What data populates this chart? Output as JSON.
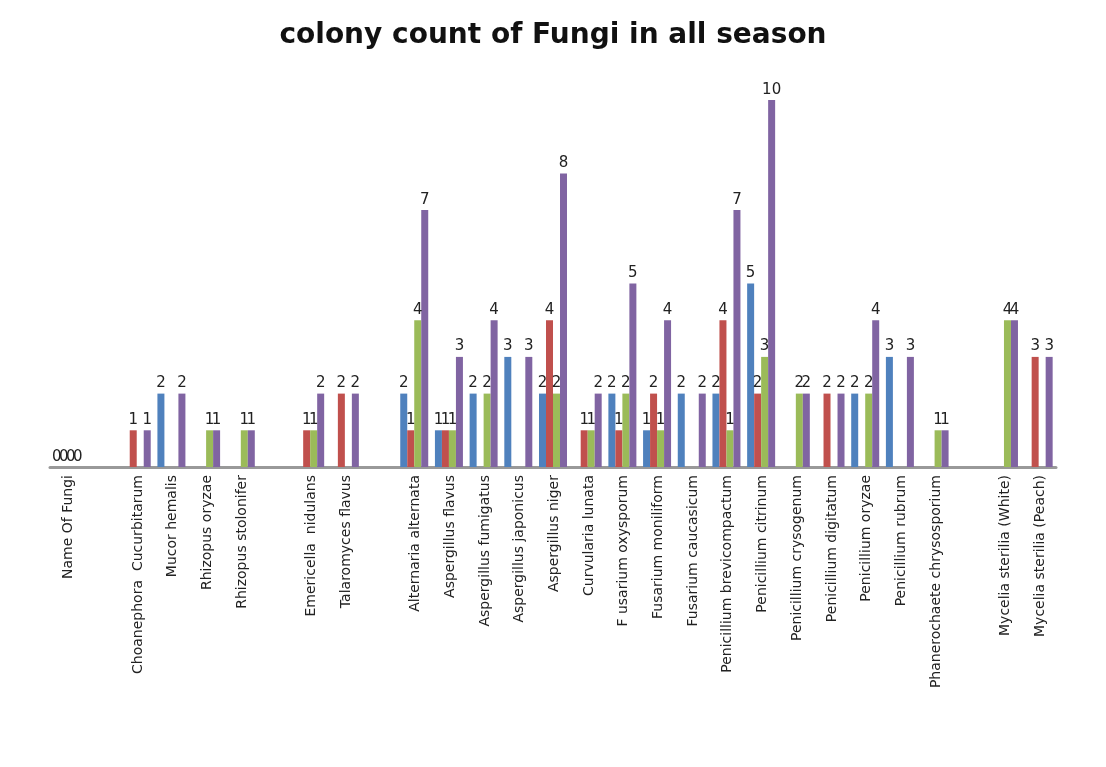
{
  "chart_data": {
    "type": "bar",
    "title": "colony count of Fungi in all season",
    "categories": [
      "Name Of Fungi",
      null,
      "Choanephora  Cucurbitarum",
      "Mucor hemalis",
      "Rhizopus oryzae",
      "Rhizopus stolonifer",
      null,
      "Emericella  nidulans",
      "Talaromyces flavus",
      null,
      "Alternaria alternata",
      "Aspergillus flavus",
      "Aspergillus fumigatus",
      "Aspergillus japonicus",
      "Aspergillus niger",
      "Curvularia lunata",
      "F usarium oxysporum",
      "Fusarium moniliform",
      "Fusarium caucasicum",
      "Penicillium brevicompactum",
      "Penicillium citrinum",
      "Penicillium crysogenum",
      "Penicillium digitatum",
      "Penicillium oryzae",
      "Penicillium rubrum",
      "Phanerochaete chrysosporium",
      null,
      "Mycelia sterilia (White)",
      "Mycelia sterilia (Peach)"
    ],
    "series": [
      {
        "color": "#4f81bd",
        "values": [
          0,
          null,
          null,
          2,
          null,
          null,
          null,
          null,
          null,
          null,
          2,
          1,
          2,
          3,
          2,
          null,
          2,
          1,
          2,
          2,
          5,
          null,
          null,
          2,
          3,
          null,
          null,
          null,
          null
        ]
      },
      {
        "color": "#c0504d",
        "values": [
          0,
          null,
          1,
          null,
          null,
          null,
          null,
          1,
          2,
          null,
          1,
          1,
          null,
          null,
          4,
          1,
          1,
          2,
          null,
          4,
          2,
          null,
          2,
          null,
          null,
          null,
          null,
          null,
          3
        ]
      },
      {
        "color": "#9bbb59",
        "values": [
          0,
          null,
          null,
          null,
          1,
          1,
          null,
          1,
          null,
          null,
          4,
          1,
          2,
          null,
          2,
          1,
          2,
          1,
          null,
          1,
          3,
          2,
          null,
          2,
          null,
          1,
          null,
          4,
          null
        ]
      },
      {
        "color": "#8064a2",
        "values": [
          0,
          null,
          1,
          2,
          1,
          1,
          null,
          2,
          2,
          null,
          7,
          3,
          4,
          3,
          8,
          2,
          5,
          4,
          2,
          7,
          10,
          2,
          2,
          4,
          3,
          1,
          null,
          4,
          3
        ]
      }
    ],
    "data_labels": true
  }
}
